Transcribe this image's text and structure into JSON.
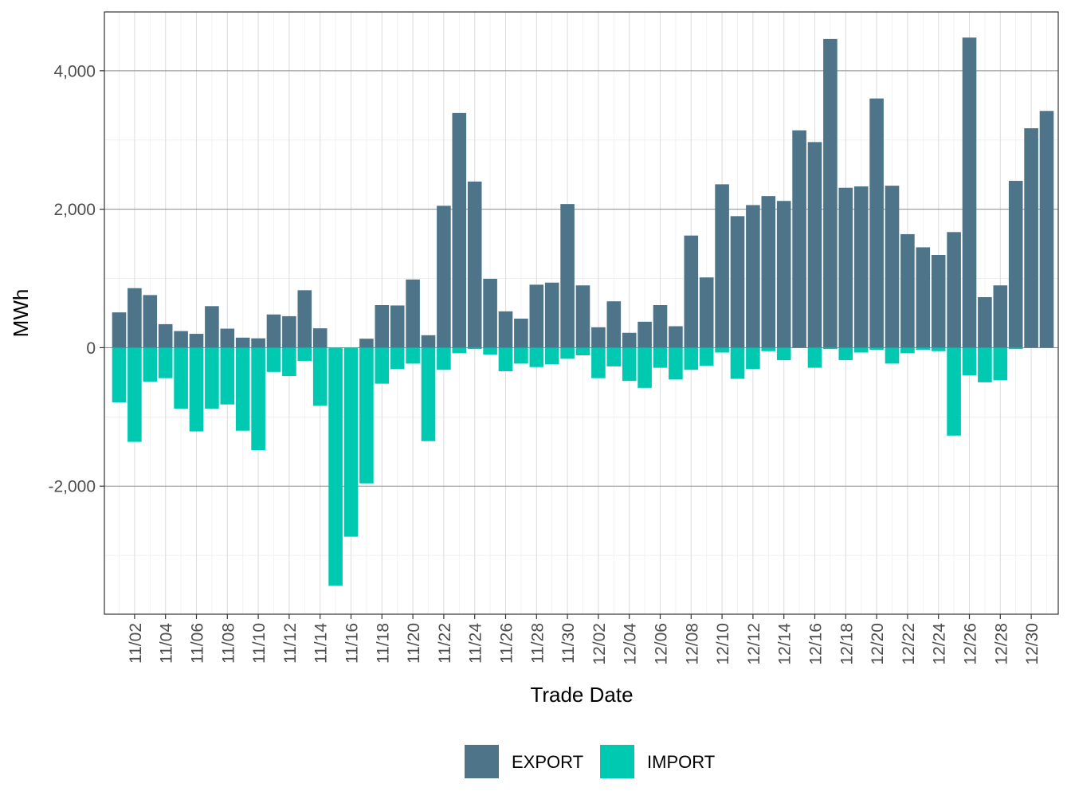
{
  "chart_data": {
    "type": "bar",
    "stacked": true,
    "title": "",
    "xlabel": "Trade Date",
    "ylabel": "MWh",
    "ylim": [
      -3850,
      4850
    ],
    "y_ticks": [
      -2000,
      0,
      2000,
      4000
    ],
    "y_tick_labels": [
      "-2,000",
      "0",
      "2,000",
      "4,000"
    ],
    "categories": [
      "11/01",
      "11/02",
      "11/03",
      "11/04",
      "11/05",
      "11/06",
      "11/07",
      "11/08",
      "11/09",
      "11/10",
      "11/11",
      "11/12",
      "11/13",
      "11/14",
      "11/15",
      "11/16",
      "11/17",
      "11/18",
      "11/19",
      "11/20",
      "11/21",
      "11/22",
      "11/23",
      "11/24",
      "11/25",
      "11/26",
      "11/27",
      "11/28",
      "11/29",
      "11/30",
      "12/01",
      "12/02",
      "12/03",
      "12/04",
      "12/05",
      "12/06",
      "12/07",
      "12/08",
      "12/09",
      "12/10",
      "12/11",
      "12/12",
      "12/13",
      "12/14",
      "12/15",
      "12/16",
      "12/17",
      "12/18",
      "12/19",
      "12/20",
      "12/21",
      "12/22",
      "12/23",
      "12/24",
      "12/25",
      "12/26",
      "12/27",
      "12/28",
      "12/29",
      "12/30",
      "12/31"
    ],
    "x_tick_labels": [
      "11/02",
      "11/04",
      "11/06",
      "11/08",
      "11/10",
      "11/12",
      "11/14",
      "11/16",
      "11/18",
      "11/20",
      "11/22",
      "11/24",
      "11/26",
      "11/28",
      "11/30",
      "12/02",
      "12/04",
      "12/06",
      "12/08",
      "12/10",
      "12/12",
      "12/14",
      "12/16",
      "12/18",
      "12/20",
      "12/22",
      "12/24",
      "12/26",
      "12/28",
      "12/30"
    ],
    "series": [
      {
        "name": "EXPORT",
        "color": "#4e7489",
        "values": [
          510,
          860,
          760,
          340,
          240,
          200,
          600,
          275,
          145,
          135,
          480,
          455,
          830,
          280,
          0,
          0,
          130,
          615,
          610,
          985,
          180,
          2050,
          3390,
          2400,
          995,
          525,
          420,
          910,
          940,
          2075,
          900,
          295,
          670,
          215,
          375,
          615,
          310,
          1620,
          1015,
          2360,
          1900,
          2060,
          2190,
          2120,
          3140,
          2970,
          4460,
          2310,
          2330,
          3600,
          2340,
          1640,
          1450,
          1340,
          1670,
          4480,
          730,
          900,
          2410,
          3170,
          3420
        ]
      },
      {
        "name": "IMPORT",
        "color": "#00c9b1",
        "values": [
          -790,
          -1360,
          -490,
          -440,
          -880,
          -1210,
          -880,
          -820,
          -1200,
          -1480,
          -350,
          -410,
          -190,
          -840,
          -3440,
          -2730,
          -1960,
          -520,
          -310,
          -230,
          -1350,
          -320,
          -80,
          -20,
          -100,
          -340,
          -230,
          -280,
          -240,
          -160,
          -110,
          -440,
          -270,
          -480,
          -580,
          -290,
          -460,
          -320,
          -260,
          -70,
          -450,
          -310,
          -50,
          -180,
          0,
          -290,
          -20,
          -180,
          -70,
          -30,
          -230,
          -80,
          -30,
          -50,
          -1270,
          -400,
          -500,
          -470,
          -20,
          0,
          0
        ]
      }
    ],
    "legend": {
      "position": "bottom",
      "entries": [
        "EXPORT",
        "IMPORT"
      ]
    },
    "grid": true
  }
}
